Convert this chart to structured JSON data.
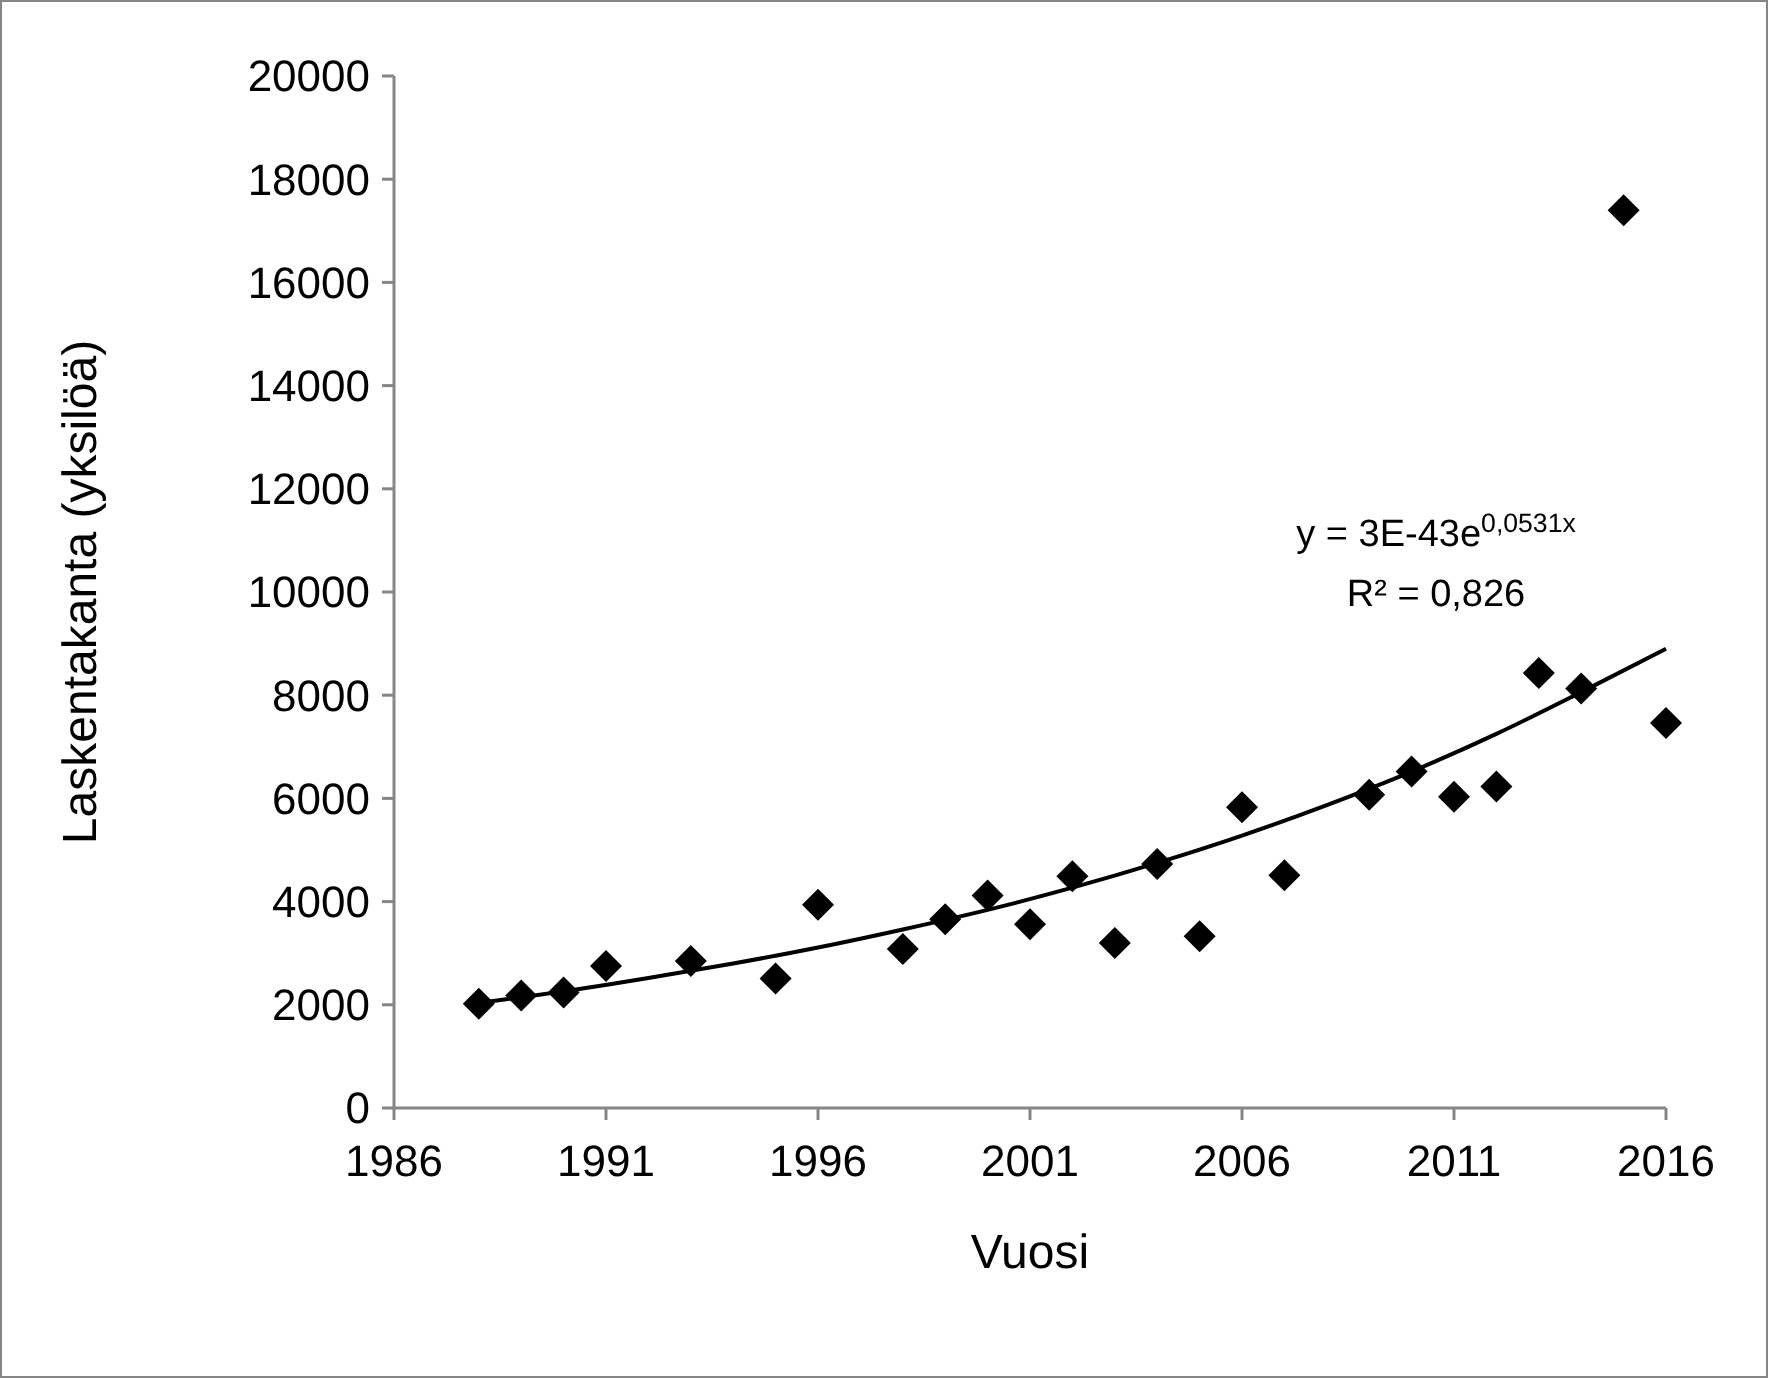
{
  "chart_data": {
    "type": "scatter",
    "xlabel": "Vuosi",
    "ylabel": "Laskentakanta (yksilöä)",
    "xlim": [
      1986,
      2016
    ],
    "xticks": [
      1986,
      1991,
      1996,
      2001,
      2006,
      2011,
      2016
    ],
    "ylim": [
      0,
      20000
    ],
    "yticks": [
      0,
      2000,
      4000,
      6000,
      8000,
      10000,
      12000,
      14000,
      16000,
      18000,
      20000
    ],
    "grid": false,
    "marker": "diamond",
    "annotations": [
      "y = 3E-43e$^{0,0531x}$",
      "R² = 0,826"
    ],
    "series": [
      {
        "color": "#000000",
        "x": [
          1988,
          1989,
          1990,
          1991,
          1993,
          1995,
          1996,
          1998,
          1999,
          2000,
          2001,
          2002,
          2003,
          2004,
          2005,
          2006,
          2007,
          2009,
          2010,
          2011,
          2012,
          2013,
          2014,
          2015,
          2016
        ],
        "values": [
          2020,
          2180,
          2240,
          2750,
          2850,
          2510,
          3940,
          3080,
          3660,
          4120,
          3560,
          4490,
          3200,
          4730,
          3330,
          5830,
          4510,
          6070,
          6520,
          6030,
          6230,
          8430,
          8130,
          17400,
          7460
        ]
      },
      {
        "type": "line",
        "color": "#000000",
        "marker": "none",
        "line_style": "solid",
        "x": [
          1988,
          1990,
          1992,
          1994,
          1996,
          1998,
          2000,
          2002,
          2004,
          2006,
          2008,
          2010,
          2012,
          2014,
          2016
        ],
        "values": [
          2040,
          2260,
          2520,
          2800,
          3110,
          3460,
          3840,
          4270,
          4750,
          5280,
          5870,
          6520,
          7250,
          8060,
          8900
        ]
      }
    ]
  }
}
